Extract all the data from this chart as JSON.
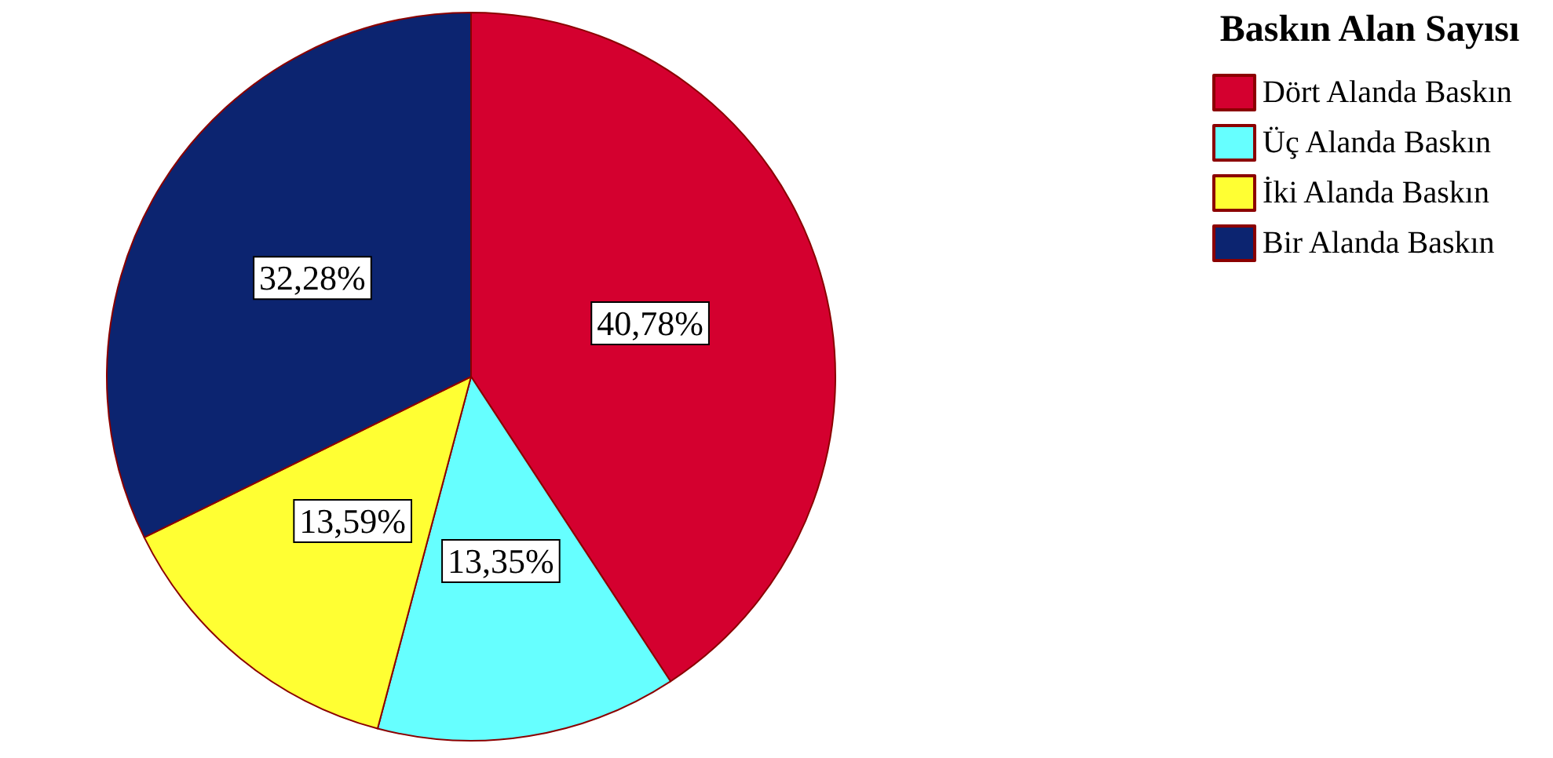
{
  "chart_data": {
    "type": "pie",
    "legend_title": "Baskın Alan Sayısı",
    "categories": [
      "Dört Alanda Baskın",
      "Üç Alanda Baskın",
      "İki Alanda Baskın",
      "Bir Alanda Baskın"
    ],
    "values": [
      40.78,
      13.35,
      13.59,
      32.28
    ],
    "colors": [
      "#d4002f",
      "#66ffff",
      "#ffff33",
      "#0c2470"
    ],
    "value_labels": [
      "40,78%",
      "13,35%",
      "13,59%",
      "32,28%"
    ],
    "legend": "top right"
  }
}
